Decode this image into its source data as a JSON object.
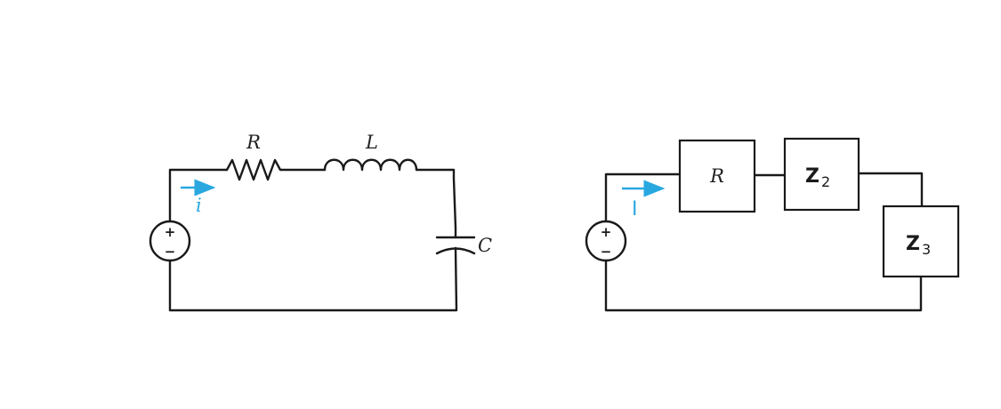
{
  "colors": {
    "current": "#29a8e0",
    "wire": "#1a1a1a"
  },
  "left_circuit": {
    "resistor_label": "R",
    "inductor_label": "L",
    "capacitor_label": "C",
    "current_label": "i",
    "source_plus": "+",
    "source_minus": "−"
  },
  "right_circuit": {
    "box1_label": "R",
    "box2_label": "Z",
    "box2_sub": "2",
    "box3_label": "Z",
    "box3_sub": "3",
    "current_label": "I",
    "source_plus": "+",
    "source_minus": "−"
  }
}
